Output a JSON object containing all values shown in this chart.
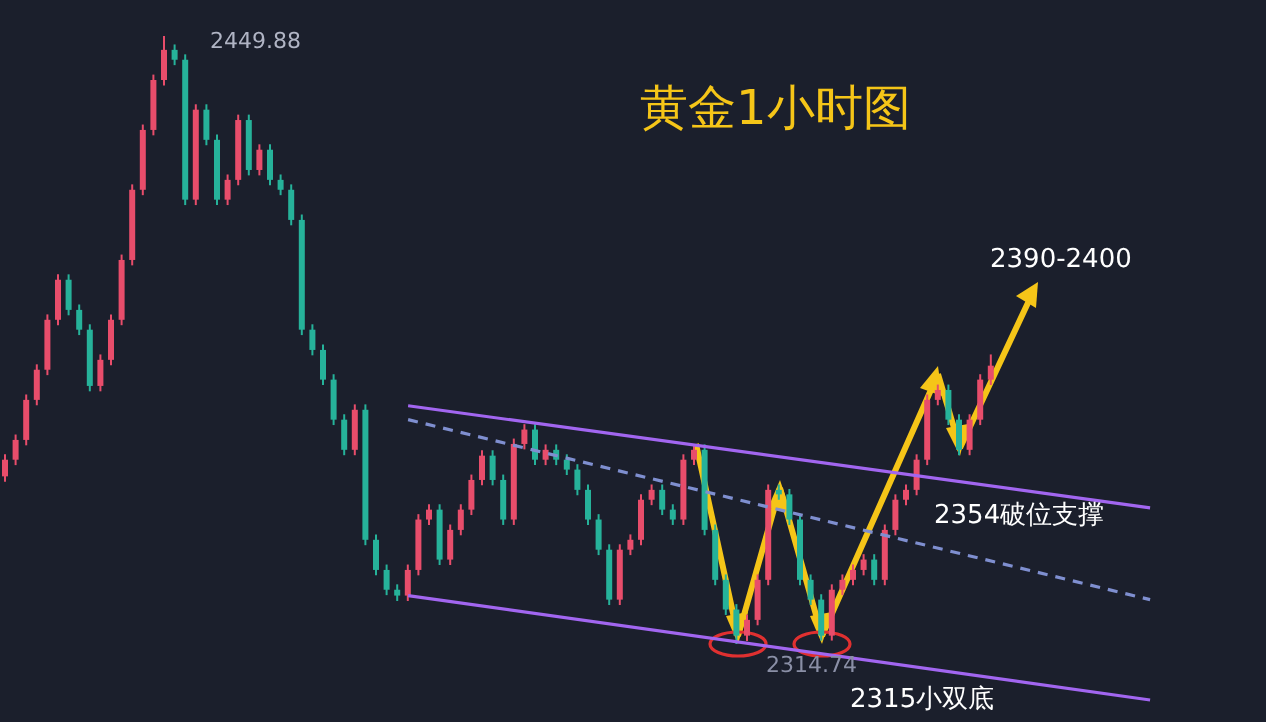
{
  "chart_data": {
    "type": "candlestick",
    "title": "黄金1小时图",
    "categories": [
      null,
      null,
      null,
      null,
      null,
      null,
      null,
      null,
      null,
      null,
      null,
      null,
      null,
      null,
      null,
      null,
      null,
      null,
      null,
      null,
      null,
      null,
      null,
      null,
      null,
      null,
      null,
      null,
      null,
      null,
      null,
      null,
      null,
      null,
      null,
      null,
      null,
      null,
      null,
      null,
      null,
      null,
      null,
      null,
      null,
      null,
      null,
      null,
      null,
      null,
      null,
      null,
      null,
      null,
      null,
      null,
      null,
      null,
      null,
      null,
      null,
      null,
      null,
      null,
      null,
      null,
      null,
      null,
      null,
      null,
      null,
      null,
      null,
      null,
      null,
      null,
      null,
      null,
      null,
      null,
      null,
      null,
      null,
      null,
      null,
      null,
      null,
      null,
      null,
      null,
      null,
      null,
      null,
      null,
      null,
      null,
      null,
      null,
      null,
      null,
      null,
      null,
      null,
      null,
      null,
      null,
      null,
      null,
      null,
      null
    ],
    "ohlc": [
      [
        2352.0,
        2356.9,
        2350.8,
        2355.7
      ],
      [
        2355.7,
        2361.3,
        2354.5,
        2360.1
      ],
      [
        2360.1,
        2370.2,
        2358.9,
        2369.0
      ],
      [
        2369.0,
        2376.9,
        2367.8,
        2375.7
      ],
      [
        2375.7,
        2388.0,
        2374.5,
        2386.8
      ],
      [
        2386.8,
        2396.9,
        2385.6,
        2395.7
      ],
      [
        2395.7,
        2396.9,
        2387.8,
        2389.0
      ],
      [
        2389.0,
        2390.2,
        2383.4,
        2384.6
      ],
      [
        2384.6,
        2385.8,
        2370.9,
        2372.1
      ],
      [
        2372.1,
        2379.1,
        2370.9,
        2377.9
      ],
      [
        2377.9,
        2388.0,
        2376.7,
        2386.8
      ],
      [
        2386.8,
        2401.3,
        2385.6,
        2400.1
      ],
      [
        2400.1,
        2416.9,
        2398.9,
        2415.7
      ],
      [
        2415.7,
        2430.2,
        2414.5,
        2429.0
      ],
      [
        2429.0,
        2441.3,
        2427.8,
        2440.1
      ],
      [
        2440.1,
        2449.88,
        2438.9,
        2446.8
      ],
      [
        2446.8,
        2448.0,
        2443.4,
        2444.6
      ],
      [
        2444.6,
        2445.8,
        2412.3,
        2413.5
      ],
      [
        2413.5,
        2434.7,
        2412.3,
        2433.5
      ],
      [
        2433.5,
        2434.7,
        2425.6,
        2426.8
      ],
      [
        2426.8,
        2428.0,
        2412.3,
        2413.5
      ],
      [
        2413.5,
        2419.1,
        2412.3,
        2417.9
      ],
      [
        2417.9,
        2432.4,
        2416.7,
        2431.2
      ],
      [
        2431.2,
        2432.4,
        2418.9,
        2420.1
      ],
      [
        2420.1,
        2425.8,
        2418.9,
        2424.6
      ],
      [
        2424.6,
        2425.8,
        2416.7,
        2417.9
      ],
      [
        2417.9,
        2419.1,
        2414.5,
        2415.7
      ],
      [
        2415.7,
        2416.9,
        2407.8,
        2409.0
      ],
      [
        2409.0,
        2410.2,
        2383.4,
        2384.6
      ],
      [
        2384.6,
        2385.8,
        2378.9,
        2380.1
      ],
      [
        2380.1,
        2381.3,
        2372.3,
        2373.5
      ],
      [
        2373.5,
        2374.7,
        2363.4,
        2364.6
      ],
      [
        2364.6,
        2365.8,
        2356.7,
        2357.9
      ],
      [
        2357.9,
        2368.0,
        2356.7,
        2366.8
      ],
      [
        2366.8,
        2368.0,
        2336.7,
        2337.9
      ],
      [
        2337.9,
        2339.1,
        2330.0,
        2331.2
      ],
      [
        2331.2,
        2332.4,
        2325.6,
        2326.8
      ],
      [
        2326.8,
        2328.0,
        2324.3,
        2325.5
      ],
      [
        2325.5,
        2332.4,
        2324.3,
        2331.2
      ],
      [
        2331.2,
        2343.6,
        2330.0,
        2342.4
      ],
      [
        2342.4,
        2345.8,
        2341.2,
        2344.6
      ],
      [
        2344.6,
        2345.8,
        2332.3,
        2333.5
      ],
      [
        2333.5,
        2341.3,
        2332.3,
        2340.1
      ],
      [
        2340.1,
        2345.8,
        2338.9,
        2344.6
      ],
      [
        2344.6,
        2352.4,
        2343.4,
        2351.2
      ],
      [
        2351.2,
        2357.8,
        2350.0,
        2356.6
      ],
      [
        2356.6,
        2357.8,
        2350.0,
        2351.2
      ],
      [
        2351.2,
        2352.4,
        2341.2,
        2342.4
      ],
      [
        2342.4,
        2360.4,
        2341.2,
        2359.2
      ],
      [
        2359.2,
        2363.6,
        2358.0,
        2362.4
      ],
      [
        2362.4,
        2363.6,
        2354.5,
        2355.7
      ],
      [
        2355.7,
        2359.1,
        2354.5,
        2357.9
      ],
      [
        2357.9,
        2359.1,
        2354.5,
        2355.7
      ],
      [
        2355.7,
        2356.9,
        2352.3,
        2353.5
      ],
      [
        2353.5,
        2354.7,
        2347.8,
        2349.0
      ],
      [
        2349.0,
        2350.2,
        2341.2,
        2342.4
      ],
      [
        2342.4,
        2343.6,
        2334.5,
        2335.7
      ],
      [
        2335.7,
        2336.9,
        2323.4,
        2324.6
      ],
      [
        2324.6,
        2336.9,
        2323.4,
        2335.7
      ],
      [
        2335.7,
        2339.1,
        2334.5,
        2337.9
      ],
      [
        2337.9,
        2348.0,
        2336.7,
        2346.8
      ],
      [
        2346.8,
        2350.2,
        2345.6,
        2349.0
      ],
      [
        2349.0,
        2350.2,
        2343.4,
        2344.6
      ],
      [
        2344.6,
        2345.8,
        2341.2,
        2342.4
      ],
      [
        2342.4,
        2356.9,
        2341.2,
        2355.7
      ],
      [
        2355.7,
        2359.1,
        2354.5,
        2357.9
      ],
      [
        2357.9,
        2359.1,
        2338.9,
        2340.1
      ],
      [
        2340.1,
        2341.3,
        2327.8,
        2329.0
      ],
      [
        2329.0,
        2330.2,
        2321.2,
        2322.4
      ],
      [
        2322.4,
        2323.6,
        2314.74,
        2316.6
      ],
      [
        2316.6,
        2321.3,
        2315.4,
        2320.1
      ],
      [
        2320.1,
        2330.2,
        2318.9,
        2329.0
      ],
      [
        2329.0,
        2350.2,
        2327.8,
        2349.0
      ],
      [
        2349.0,
        2350.2,
        2346.8,
        2348.0
      ],
      [
        2348.0,
        2349.2,
        2341.2,
        2342.4
      ],
      [
        2342.4,
        2343.6,
        2327.8,
        2329.0
      ],
      [
        2329.0,
        2330.2,
        2323.4,
        2324.6
      ],
      [
        2324.6,
        2325.8,
        2315.5,
        2316.6
      ],
      [
        2316.6,
        2328.0,
        2315.5,
        2326.8
      ],
      [
        2326.8,
        2330.2,
        2325.6,
        2329.0
      ],
      [
        2329.0,
        2332.4,
        2327.8,
        2331.2
      ],
      [
        2331.2,
        2334.7,
        2330.0,
        2333.5
      ],
      [
        2333.5,
        2334.7,
        2327.8,
        2329.0
      ],
      [
        2329.0,
        2341.3,
        2327.8,
        2340.1
      ],
      [
        2340.1,
        2348.0,
        2338.9,
        2346.8
      ],
      [
        2346.8,
        2350.2,
        2345.6,
        2349.0
      ],
      [
        2349.0,
        2356.9,
        2347.8,
        2355.7
      ],
      [
        2355.7,
        2370.2,
        2354.5,
        2369.0
      ],
      [
        2369.0,
        2372.4,
        2367.8,
        2371.2
      ],
      [
        2371.2,
        2372.4,
        2363.4,
        2364.6
      ],
      [
        2364.6,
        2365.8,
        2356.7,
        2357.9
      ],
      [
        2357.9,
        2365.8,
        2356.7,
        2364.6
      ],
      [
        2364.6,
        2374.7,
        2363.4,
        2373.5
      ],
      [
        2373.5,
        2379.1,
        2372.3,
        2376.6
      ],
      null,
      null,
      null,
      null,
      null,
      null,
      null,
      null,
      null,
      null,
      null,
      null,
      null,
      null,
      null,
      null
    ],
    "colors": [
      "#e84d6b",
      "#e84d6b",
      "#e84d6b",
      "#e84d6b",
      "#e84d6b",
      "#e84d6b",
      "#26b29a",
      "#26b29a",
      "#26b29a",
      "#e84d6b",
      "#e84d6b",
      "#e84d6b",
      "#e84d6b",
      "#e84d6b",
      "#e84d6b",
      "#e84d6b",
      "#26b29a",
      "#26b29a",
      "#e84d6b",
      "#26b29a",
      "#26b29a",
      "#e84d6b",
      "#e84d6b",
      "#26b29a",
      "#e84d6b",
      "#26b29a",
      "#26b29a",
      "#26b29a",
      "#26b29a",
      "#26b29a",
      "#26b29a",
      "#26b29a",
      "#26b29a",
      "#e84d6b",
      "#26b29a",
      "#26b29a",
      "#26b29a",
      "#26b29a",
      "#e84d6b",
      "#e84d6b",
      "#e84d6b",
      "#26b29a",
      "#e84d6b",
      "#e84d6b",
      "#e84d6b",
      "#e84d6b",
      "#26b29a",
      "#26b29a",
      "#e84d6b",
      "#e84d6b",
      "#26b29a",
      "#e84d6b",
      "#26b29a",
      "#26b29a",
      "#26b29a",
      "#26b29a",
      "#26b29a",
      "#26b29a",
      "#e84d6b",
      "#e84d6b",
      "#e84d6b",
      "#e84d6b",
      "#26b29a",
      "#26b29a",
      "#e84d6b",
      "#e84d6b",
      "#26b29a",
      "#26b29a",
      "#26b29a",
      "#26b29a",
      "#e84d6b",
      "#e84d6b",
      "#e84d6b",
      "#26b29a",
      "#26b29a",
      "#26b29a",
      "#26b29a",
      "#26b29a",
      "#e84d6b",
      "#e84d6b",
      "#e84d6b",
      "#e84d6b",
      "#26b29a",
      "#e84d6b",
      "#e84d6b",
      "#e84d6b",
      "#e84d6b",
      "#e84d6b",
      "#e84d6b",
      "#26b29a",
      "#26b29a",
      "#e84d6b",
      "#e84d6b",
      "#e84d6b",
      null,
      null,
      null,
      null,
      null,
      null,
      null,
      null,
      null,
      null,
      null,
      null,
      null,
      null,
      null,
      null
    ],
    "series": [
      {
        "type": "line",
        "color": "#a266f0",
        "line_style": "solid",
        "values": [
          null,
          null,
          null,
          null,
          null,
          null,
          null,
          null,
          null,
          null,
          null,
          null,
          null,
          null,
          null,
          null,
          null,
          null,
          null,
          null,
          null,
          null,
          null,
          null,
          null,
          null,
          null,
          null,
          null,
          null,
          null,
          null,
          null,
          null,
          null,
          null,
          null,
          null,
          2367.7,
          null,
          null,
          null,
          null,
          null,
          null,
          null,
          null,
          null,
          null,
          null,
          null,
          null,
          null,
          null,
          null,
          null,
          null,
          null,
          null,
          null,
          null,
          null,
          null,
          null,
          null,
          null,
          null,
          null,
          null,
          null,
          null,
          null,
          null,
          null,
          null,
          null,
          null,
          null,
          null,
          null,
          null,
          null,
          null,
          null,
          null,
          null,
          null,
          null,
          null,
          null,
          null,
          null,
          null,
          null,
          null,
          null,
          null,
          null,
          null,
          null,
          null,
          null,
          null,
          null,
          null,
          null,
          null,
          null,
          2345.0,
          null
        ]
      },
      {
        "type": "line",
        "color": "#7f8fd0",
        "line_style": "dashed",
        "values": [
          null,
          null,
          null,
          null,
          null,
          null,
          null,
          null,
          null,
          null,
          null,
          null,
          null,
          null,
          null,
          null,
          null,
          null,
          null,
          null,
          null,
          null,
          null,
          null,
          null,
          null,
          null,
          null,
          null,
          null,
          null,
          null,
          null,
          null,
          null,
          null,
          null,
          null,
          2364.6,
          null,
          null,
          null,
          null,
          null,
          null,
          null,
          null,
          null,
          null,
          null,
          null,
          null,
          null,
          null,
          null,
          null,
          null,
          null,
          null,
          null,
          null,
          null,
          null,
          null,
          null,
          null,
          null,
          null,
          null,
          null,
          null,
          null,
          null,
          null,
          null,
          null,
          null,
          null,
          null,
          null,
          null,
          null,
          null,
          null,
          null,
          null,
          null,
          null,
          null,
          null,
          null,
          null,
          null,
          null,
          null,
          null,
          null,
          null,
          null,
          null,
          null,
          null,
          null,
          null,
          null,
          null,
          null,
          null,
          2324.6,
          null
        ]
      },
      {
        "type": "line",
        "color": "#a266f0",
        "line_style": "solid",
        "values": [
          null,
          null,
          null,
          null,
          null,
          null,
          null,
          null,
          null,
          null,
          null,
          null,
          null,
          null,
          null,
          null,
          null,
          null,
          null,
          null,
          null,
          null,
          null,
          null,
          null,
          null,
          null,
          null,
          null,
          null,
          null,
          null,
          null,
          null,
          null,
          null,
          null,
          null,
          2325.5,
          null,
          null,
          null,
          null,
          null,
          null,
          null,
          null,
          null,
          null,
          null,
          null,
          null,
          null,
          null,
          null,
          null,
          null,
          null,
          null,
          null,
          null,
          null,
          null,
          null,
          null,
          null,
          null,
          null,
          null,
          null,
          null,
          null,
          null,
          null,
          null,
          null,
          null,
          null,
          null,
          null,
          null,
          null,
          null,
          null,
          null,
          null,
          null,
          null,
          null,
          null,
          null,
          null,
          null,
          null,
          null,
          null,
          null,
          null,
          null,
          null,
          null,
          null,
          null,
          null,
          null,
          null,
          null,
          null,
          2302.3,
          null
        ]
      }
    ],
    "annotations": [
      "2449.88",
      "2314.74",
      "2390-2400",
      "2354破位支撑",
      "2315小双底"
    ]
  }
}
